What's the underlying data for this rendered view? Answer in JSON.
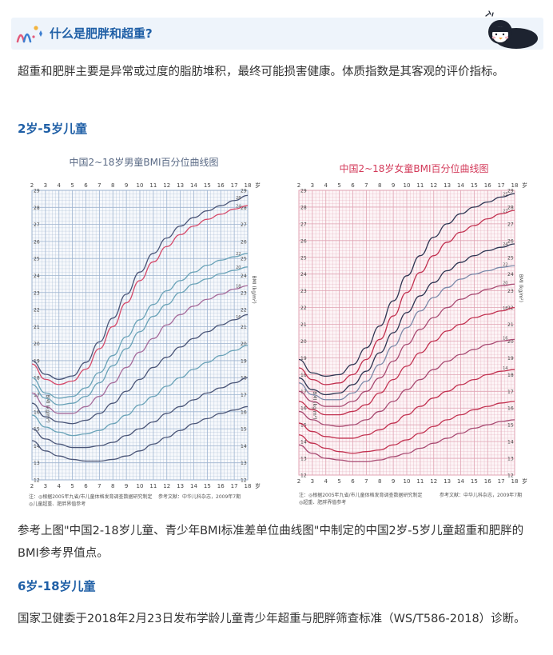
{
  "banner": {
    "title": "什么是肥胖和超重?"
  },
  "intro": "超重和肥胖主要是异常或过度的脂肪堆积，最终可能损害健康。体质指数是其客观的评价指标。",
  "section1": {
    "heading": "2岁-5岁儿童",
    "paragraph": "参考上图\"中国2-18岁儿童、青少年BMI标准差单位曲线图\"中制定的中国2岁-5岁儿童超重和肥胖的BMI参考界值点。"
  },
  "section2": {
    "heading": "6岁-18岁儿童",
    "paragraph": "国家卫健委于2018年2月23日发布学龄儿童青少年超重与肥胖筛查标准（WS/T586-2018）诊断。"
  },
  "charts": {
    "unit_label": "岁",
    "ylabel": "BMI (kg/m²)",
    "x_ticks": [
      2,
      3,
      4,
      5,
      6,
      7,
      8,
      9,
      10,
      11,
      12,
      13,
      14,
      15,
      16,
      17,
      18
    ],
    "y_ticks": [
      12,
      13,
      14,
      15,
      16,
      17,
      18,
      19,
      20,
      21,
      22,
      23,
      24,
      25,
      26,
      27,
      28,
      29
    ],
    "boy": {
      "title": "中国2~18岁男童BMI百分位曲线图",
      "footnote_left": "注：◎根据2005年九省/市儿童体格发育调查数据研究制定",
      "footnote_left2": "◎儿童超重、肥胖界值参考",
      "footnote_right": "参考文献：中华儿科杂志，2009年7期",
      "grid_color": "#9db3cf",
      "bg": "#f7f9fc",
      "curve_labels": [
        "28",
        "24",
        "22",
        "20",
        "18",
        "16"
      ]
    },
    "girl": {
      "title": "中国2~18岁女童BMI百分位曲线图",
      "footnote_left": "注：◎根据2005年九省/市儿童体格发育调查数据研究制定",
      "footnote_left2": "◎超重、肥胖界值参考",
      "footnote_right": "参考文献：中华儿科杂志，2009年7期",
      "grid_color": "#e0a3b3",
      "bg": "#fdf5f7",
      "curve_labels": [
        "25",
        "27",
        "24",
        "22",
        "20",
        "18",
        "16",
        "14"
      ]
    }
  },
  "chart_data": [
    {
      "type": "line",
      "title": "中国2~18岁男童BMI百分位曲线图",
      "xlabel": "岁",
      "ylabel": "BMI (kg/m²)",
      "xlim": [
        2,
        18
      ],
      "ylim": [
        12,
        29
      ],
      "x": [
        2,
        3,
        4,
        5,
        6,
        7,
        8,
        9,
        10,
        11,
        12,
        13,
        14,
        15,
        16,
        17,
        18
      ],
      "series": [
        {
          "values": [
            19.0,
            18.2,
            17.9,
            18.1,
            18.9,
            20.1,
            21.5,
            22.9,
            24.2,
            25.3,
            26.2,
            26.9,
            27.4,
            27.8,
            28.1,
            28.4,
            28.7
          ]
        },
        {
          "values": [
            18.8,
            17.9,
            17.6,
            17.8,
            18.5,
            19.7,
            21.0,
            22.4,
            23.7,
            24.8,
            25.7,
            26.4,
            26.9,
            27.3,
            27.6,
            27.9,
            28.1
          ]
        },
        {
          "values": [
            18.0,
            17.1,
            16.8,
            16.9,
            17.4,
            18.3,
            19.3,
            20.4,
            21.4,
            22.3,
            23.1,
            23.7,
            24.2,
            24.6,
            24.9,
            25.1,
            25.3
          ]
        },
        {
          "values": [
            17.6,
            16.8,
            16.4,
            16.5,
            16.9,
            17.7,
            18.7,
            19.7,
            20.7,
            21.6,
            22.3,
            23.0,
            23.5,
            23.8,
            24.1,
            24.3,
            24.5
          ]
        },
        {
          "values": [
            17.1,
            16.3,
            15.9,
            15.9,
            16.3,
            16.9,
            17.7,
            18.6,
            19.5,
            20.3,
            21.1,
            21.7,
            22.2,
            22.6,
            22.9,
            23.2,
            23.4
          ]
        },
        {
          "values": [
            16.5,
            15.7,
            15.4,
            15.3,
            15.5,
            15.9,
            16.5,
            17.2,
            17.9,
            18.6,
            19.2,
            19.8,
            20.3,
            20.7,
            21.1,
            21.4,
            21.7
          ]
        },
        {
          "values": [
            15.8,
            15.1,
            14.8,
            14.6,
            14.7,
            14.9,
            15.3,
            15.8,
            16.4,
            16.9,
            17.5,
            18.0,
            18.5,
            18.9,
            19.3,
            19.6,
            19.9
          ]
        },
        {
          "values": [
            15.0,
            14.4,
            14.1,
            13.9,
            13.9,
            14.0,
            14.2,
            14.6,
            15.0,
            15.4,
            15.9,
            16.3,
            16.7,
            17.1,
            17.4,
            17.7,
            18.0
          ]
        },
        {
          "values": [
            14.3,
            13.7,
            13.4,
            13.2,
            13.1,
            13.1,
            13.2,
            13.4,
            13.7,
            14.1,
            14.5,
            14.9,
            15.3,
            15.6,
            15.9,
            16.1,
            16.3
          ]
        }
      ]
    },
    {
      "type": "line",
      "title": "中国2~18岁女童BMI百分位曲线图",
      "xlabel": "岁",
      "ylabel": "BMI (kg/m²)",
      "xlim": [
        2,
        18
      ],
      "ylim": [
        12,
        29
      ],
      "x": [
        2,
        3,
        4,
        5,
        6,
        7,
        8,
        9,
        10,
        11,
        12,
        13,
        14,
        15,
        16,
        17,
        18
      ],
      "series": [
        {
          "values": [
            18.9,
            18.1,
            17.9,
            18.0,
            18.6,
            19.6,
            20.9,
            22.4,
            23.9,
            25.1,
            26.2,
            27.0,
            27.6,
            28.0,
            28.3,
            28.6,
            28.8
          ]
        },
        {
          "values": [
            18.4,
            17.7,
            17.4,
            17.5,
            18.0,
            18.9,
            20.1,
            21.5,
            22.9,
            24.1,
            25.1,
            25.9,
            26.5,
            26.9,
            27.3,
            27.6,
            27.8
          ]
        },
        {
          "values": [
            17.8,
            17.1,
            16.8,
            16.9,
            17.4,
            18.2,
            19.3,
            20.5,
            21.7,
            22.7,
            23.5,
            24.2,
            24.7,
            25.1,
            25.4,
            25.6,
            25.8
          ]
        },
        {
          "values": [
            17.5,
            16.8,
            16.5,
            16.5,
            16.9,
            17.6,
            18.6,
            19.7,
            20.8,
            21.8,
            22.6,
            23.2,
            23.7,
            24.0,
            24.2,
            24.4,
            24.5
          ]
        },
        {
          "values": [
            17.0,
            16.4,
            16.1,
            16.1,
            16.4,
            17.0,
            17.8,
            18.8,
            19.8,
            20.7,
            21.4,
            22.0,
            22.5,
            22.8,
            23.1,
            23.3,
            23.4
          ]
        },
        {
          "values": [
            16.4,
            15.9,
            15.6,
            15.6,
            15.8,
            16.2,
            16.9,
            17.7,
            18.5,
            19.3,
            20.0,
            20.6,
            21.0,
            21.4,
            21.6,
            21.8,
            22.0
          ]
        },
        {
          "values": [
            15.8,
            15.3,
            15.0,
            14.9,
            15.0,
            15.3,
            15.8,
            16.4,
            17.1,
            17.7,
            18.3,
            18.8,
            19.2,
            19.5,
            19.8,
            20.0,
            20.1
          ]
        },
        {
          "values": [
            15.1,
            14.6,
            14.3,
            14.2,
            14.2,
            14.4,
            14.7,
            15.1,
            15.6,
            16.1,
            16.6,
            17.0,
            17.4,
            17.7,
            18.0,
            18.2,
            18.3
          ]
        },
        {
          "values": [
            14.4,
            13.9,
            13.6,
            13.4,
            13.3,
            13.4,
            13.5,
            13.8,
            14.1,
            14.5,
            14.9,
            15.3,
            15.6,
            15.9,
            16.1,
            16.3,
            16.4
          ]
        },
        {
          "values": [
            13.8,
            13.3,
            13.0,
            12.9,
            12.8,
            12.8,
            12.9,
            13.1,
            13.3,
            13.6,
            13.9,
            14.2,
            14.5,
            14.8,
            15.0,
            15.2,
            15.3
          ]
        }
      ]
    }
  ]
}
